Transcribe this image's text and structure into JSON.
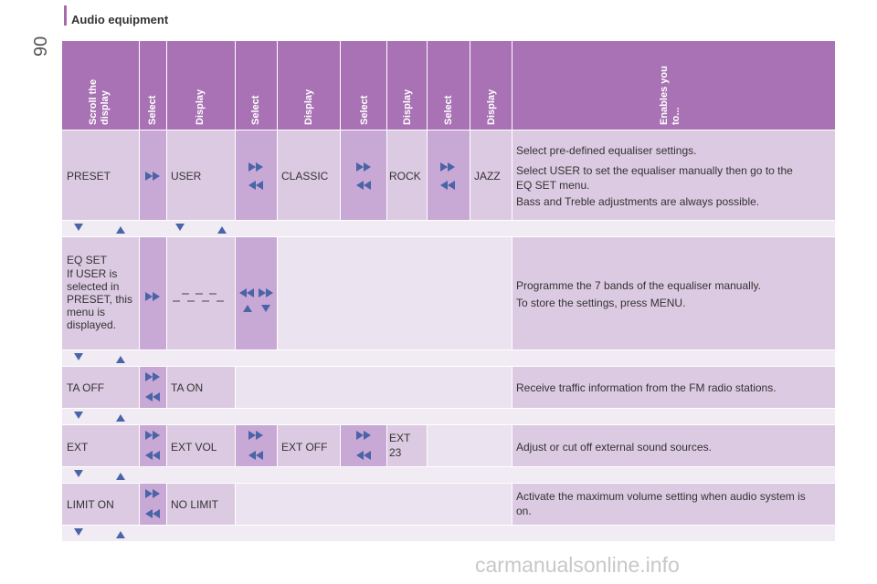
{
  "page": {
    "number": "90",
    "section_title": "Audio equipment",
    "watermark": "carmanualsonline.info"
  },
  "headers": {
    "scroll": "Scroll the\ndisplay",
    "select1": "Select",
    "display1": "Display",
    "select2": "Select",
    "display2": "Display",
    "select3": "Select",
    "display3": "Display",
    "select4": "Select",
    "display4": "Display",
    "enables": "Enables you\nto..."
  },
  "rows": {
    "preset": {
      "col1": "PRESET",
      "col2": "USER",
      "col3": "CLASSIC",
      "col4": "ROCK",
      "col5": "JAZZ",
      "desc1": "Select pre-defined equaliser settings.",
      "desc2": "Select USER to set the equaliser manually then go to the EQ SET menu.",
      "desc3": "Bass and Treble adjustments are always possible."
    },
    "eqset": {
      "col1a": "EQ SET",
      "col1b": "If USER is selected in PRESET, this menu is displayed.",
      "desc1": "Programme the 7 bands of the equaliser manually.",
      "desc2": "To store the settings, press MENU."
    },
    "ta": {
      "col1": "TA OFF",
      "col2": "TA ON",
      "desc": "Receive traffic information from the FM radio stations."
    },
    "ext": {
      "col1": "EXT",
      "col2": "EXT VOL",
      "col3": "EXT OFF",
      "col4": "EXT 23",
      "desc": "Adjust or cut off external sound sources."
    },
    "limit": {
      "col1": "LIMIT ON",
      "col2": "NO LIMIT",
      "desc": "Activate the maximum volume setting when audio system is on."
    }
  },
  "icons": [
    "arrow-down-icon",
    "arrow-up-icon",
    "fast-forward-icon",
    "rewind-icon"
  ]
}
